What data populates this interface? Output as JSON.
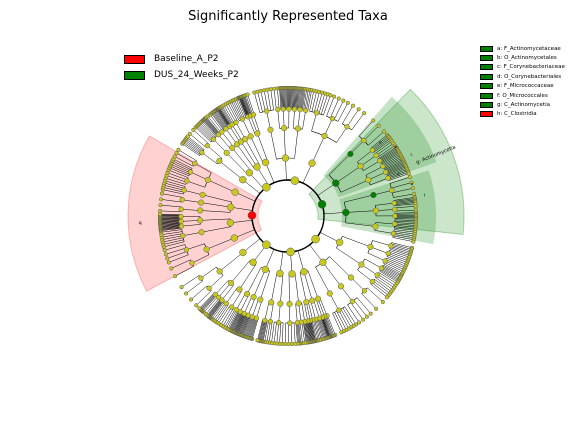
{
  "title": "Significantly Represented Taxa",
  "legend": [
    {
      "label": "Baseline_A_P2",
      "color": "#ff0000"
    },
    {
      "label": "DUS_24_Weeks_P2",
      "color": "#008000"
    }
  ],
  "taxa_key": [
    {
      "label": "a: F_Actinomycetaceae",
      "color": "#008000"
    },
    {
      "label": "b: O_Actinomycetales",
      "color": "#008000"
    },
    {
      "label": "c: F_Corynebacteriaceae",
      "color": "#008000"
    },
    {
      "label": "d: O_Corynebacteriales",
      "color": "#008000"
    },
    {
      "label": "e: F_Micrococcaceae",
      "color": "#008000"
    },
    {
      "label": "f: O_Micrococcales",
      "color": "#008000"
    },
    {
      "label": "g: C_Actinomycetia",
      "color": "#008000"
    },
    {
      "label": "h: C_Clostridia",
      "color": "#ff0000"
    }
  ],
  "chart_data": {
    "type": "cladogram",
    "title": "Significantly Represented Taxa",
    "groups": [
      "Baseline_A_P2",
      "DUS_24_Weeks_P2"
    ],
    "colors": {
      "Baseline_A_P2": "#ff0000",
      "DUS_24_Weeks_P2": "#008000",
      "not_significant": "#c8c81e"
    },
    "highlighted_clades": [
      {
        "label": "g: Actinomycetia",
        "group": "DUS_24_Weeks_P2",
        "level": "class"
      },
      {
        "label": "b",
        "group": "DUS_24_Weeks_P2",
        "level": "order"
      },
      {
        "label": "a",
        "group": "DUS_24_Weeks_P2",
        "level": "family"
      },
      {
        "label": "d",
        "group": "DUS_24_Weeks_P2",
        "level": "order"
      },
      {
        "label": "c",
        "group": "DUS_24_Weeks_P2",
        "level": "family"
      },
      {
        "label": "f",
        "group": "DUS_24_Weeks_P2",
        "level": "order"
      },
      {
        "label": "e",
        "group": "DUS_24_Weeks_P2",
        "level": "family"
      },
      {
        "label": "h",
        "group": "Baseline_A_P2",
        "level": "class"
      }
    ],
    "ring_labels": [
      {
        "text": "g: Actinomycetia",
        "group": "DUS_24_Weeks_P2"
      },
      {
        "text": "h",
        "group": "Baseline_A_P2"
      },
      {
        "text": "a",
        "group": "DUS_24_Weeks_P2"
      },
      {
        "text": "b",
        "group": "DUS_24_Weeks_P2"
      },
      {
        "text": "c",
        "group": "DUS_24_Weeks_P2"
      },
      {
        "text": "d",
        "group": "DUS_24_Weeks_P2"
      },
      {
        "text": "e",
        "group": "DUS_24_Weeks_P2"
      },
      {
        "text": "f",
        "group": "DUS_24_Weeks_P2"
      }
    ]
  }
}
